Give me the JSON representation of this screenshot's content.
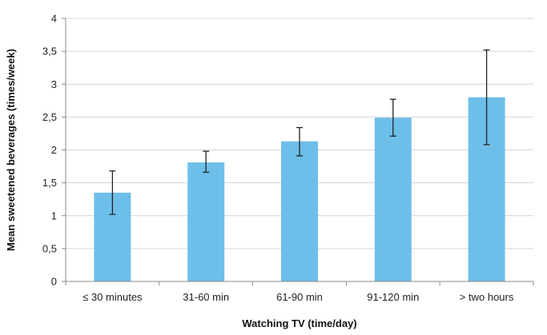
{
  "chart_data": {
    "type": "bar",
    "title": "",
    "xlabel": "Watching TV (time/day)",
    "ylabel": "Mean sweetened beverages (times/week)",
    "categories": [
      "≤ 30 minutes",
      "31-60 min",
      "61-90 min",
      "91-120 min",
      "> two hours"
    ],
    "values": [
      1.35,
      1.81,
      2.13,
      2.49,
      2.8
    ],
    "error_low": [
      1.02,
      1.66,
      1.91,
      2.21,
      2.08
    ],
    "error_high": [
      1.68,
      1.98,
      2.34,
      2.77,
      3.52
    ],
    "ylim": [
      0,
      4
    ],
    "yticks": [
      0,
      0.5,
      1,
      1.5,
      2,
      2.5,
      3,
      3.5,
      4
    ],
    "ytick_labels": [
      "0",
      "0,5",
      "1",
      "1,5",
      "2",
      "2,5",
      "3",
      "3,5",
      "4"
    ],
    "grid": true,
    "legend": "none",
    "colors": {
      "bar": "#6dbfe9",
      "grid": "#d4d4d4",
      "axis": "#8a8a8a",
      "error": "#222222"
    }
  }
}
